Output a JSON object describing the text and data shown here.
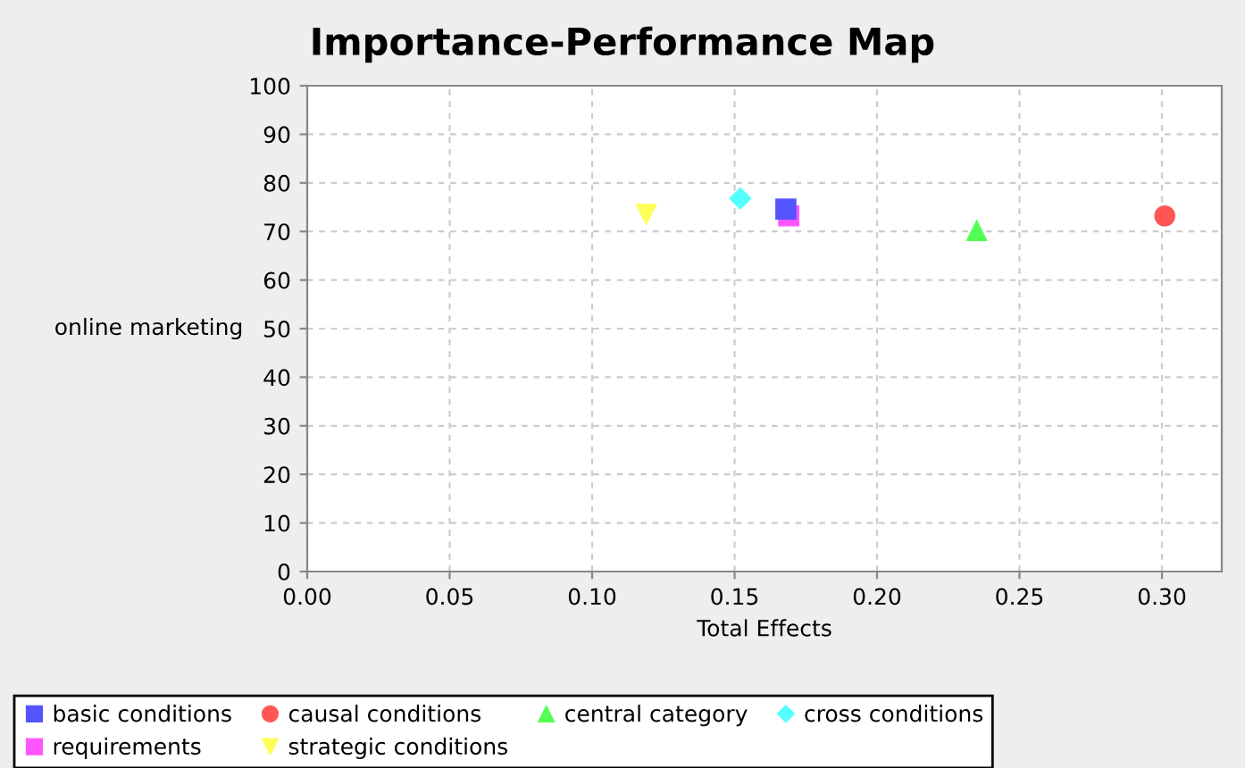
{
  "chart_data": {
    "type": "scatter",
    "title": "Importance-Performance Map",
    "xlabel": "Total Effects",
    "ylabel": "online marketing",
    "xlim": [
      0,
      0.321
    ],
    "xticks": [
      {
        "value": 0,
        "label": "0.00"
      },
      {
        "value": 0.05,
        "label": "0.05"
      },
      {
        "value": 0.1,
        "label": "0.10"
      },
      {
        "value": 0.15,
        "label": "0.15"
      },
      {
        "value": 0.2,
        "label": "0.20"
      },
      {
        "value": 0.25,
        "label": "0.25"
      },
      {
        "value": 0.3,
        "label": "0.30"
      }
    ],
    "ylim": [
      0,
      100
    ],
    "yticks": [
      0,
      10,
      20,
      30,
      40,
      50,
      60,
      70,
      80,
      90,
      100
    ],
    "grid": true,
    "legend": "bottom",
    "series": [
      {
        "name": "basic conditions",
        "color": "#5555ff",
        "marker": "square",
        "x": [
          0.168
        ],
        "values": [
          74.6
        ]
      },
      {
        "name": "causal conditions",
        "color": "#ff5555",
        "marker": "circle",
        "x": [
          0.301
        ],
        "values": [
          73.2
        ]
      },
      {
        "name": "central category",
        "color": "#55ff55",
        "marker": "triangle",
        "x": [
          0.235
        ],
        "values": [
          70.2
        ]
      },
      {
        "name": "cross conditions",
        "color": "#55ffff",
        "marker": "diamond",
        "x": [
          0.152
        ],
        "values": [
          76.8
        ]
      },
      {
        "name": "requirements",
        "color": "#ff55ff",
        "marker": "square",
        "x": [
          0.169
        ],
        "values": [
          73.2
        ]
      },
      {
        "name": "strategic conditions",
        "color": "#ffff55",
        "marker": "triangle_down",
        "x": [
          0.119
        ],
        "values": [
          73.5
        ]
      }
    ]
  }
}
